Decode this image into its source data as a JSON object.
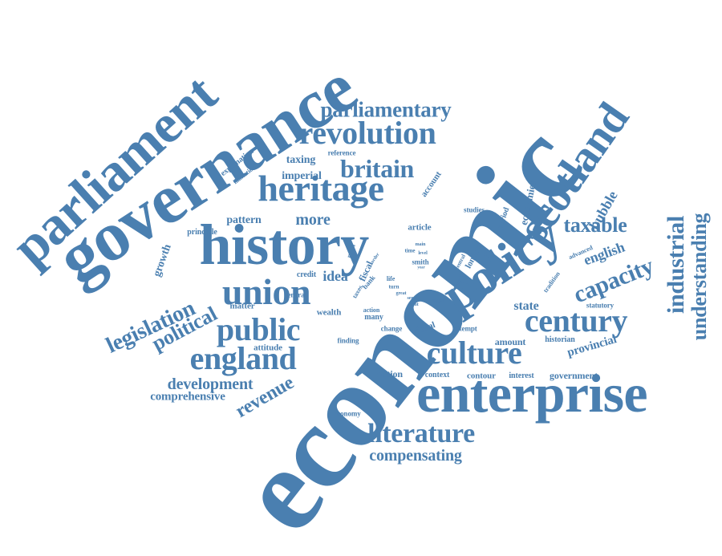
{
  "colors": {
    "text": "#4a7fb0",
    "background": "#ffffff"
  },
  "words": [
    "economic",
    "governance",
    "parliament",
    "history",
    "enterprise",
    "policy",
    "scotland",
    "heritage",
    "union",
    "revolution",
    "century",
    "culture",
    "public",
    "england",
    "literature",
    "capacity",
    "parliamentary",
    "britain",
    "industrial",
    "understanding",
    "legislation",
    "political",
    "taxable",
    "revenue",
    "development",
    "compensating",
    "comprehensive",
    "english",
    "more",
    "state",
    "bubble",
    "idea",
    "provincial",
    "growth",
    "taxing",
    "imperial",
    "pattern",
    "principle",
    "credit",
    "general",
    "matter",
    "wealth",
    "attitude",
    "finding",
    "action",
    "many",
    "change",
    "global",
    "attempt",
    "amount",
    "historian",
    "government",
    "interest",
    "contour",
    "context",
    "nation",
    "economy",
    "article",
    "studies",
    "economies",
    "period",
    "london",
    "account",
    "reference",
    "explanation",
    "limitation",
    "advanced",
    "tradition",
    "statutory",
    "myth",
    "fiscal",
    "bank",
    "taxes",
    "life",
    "smith",
    "level",
    "turn",
    "great",
    "sense",
    "event",
    "major",
    "main",
    "time",
    "year",
    "regard",
    "central",
    "order"
  ]
}
